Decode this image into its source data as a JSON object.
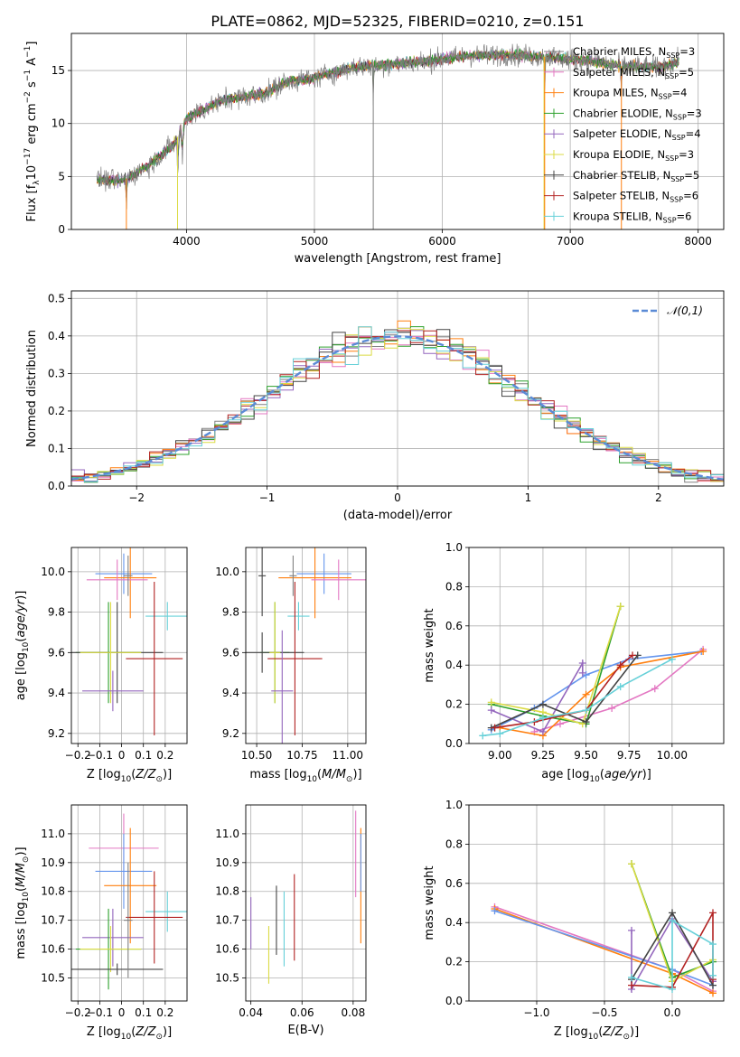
{
  "title": "PLATE=0862, MJD=52325, FIBERID=0210, z=0.151",
  "colors": [
    "#808080",
    "#e377c2",
    "#ff7f0e",
    "#2ca02c",
    "#9467bd",
    "#dbdb44",
    "#444444",
    "#b22222",
    "#66d0d8",
    "#6495ed"
  ],
  "legend": [
    {
      "label": "Chabrier MILES, N",
      "sub": "SSP",
      "suffix": "=3",
      "color": "#808080"
    },
    {
      "label": "Salpeter MILES, N",
      "sub": "SSP",
      "suffix": "=5",
      "color": "#e377c2"
    },
    {
      "label": "Kroupa MILES, N",
      "sub": "SSP",
      "suffix": "=4",
      "color": "#ff7f0e"
    },
    {
      "label": "Chabrier ELODIE, N",
      "sub": "SSP",
      "suffix": "=3",
      "color": "#2ca02c"
    },
    {
      "label": "Salpeter ELODIE, N",
      "sub": "SSP",
      "suffix": "=4",
      "color": "#9467bd"
    },
    {
      "label": "Kroupa ELODIE, N",
      "sub": "SSP",
      "suffix": "=3",
      "color": "#dbdb44"
    },
    {
      "label": "Chabrier STELIB, N",
      "sub": "SSP",
      "suffix": "=5",
      "color": "#444444"
    },
    {
      "label": "Salpeter STELIB, N",
      "sub": "SSP",
      "suffix": "=6",
      "color": "#b22222"
    },
    {
      "label": "Kroupa STELIB, N",
      "sub": "SSP",
      "suffix": "=6",
      "color": "#66d0d8"
    }
  ],
  "chart_data": [
    {
      "type": "line",
      "panel": "spectrum",
      "xlabel": "wavelength [Angstrom, rest frame]",
      "ylabel": "Flux [f_λ10^-17 erg cm^-2 s^-1 A^-1]",
      "xlim": [
        3100,
        8200
      ],
      "ylim": [
        0,
        18.5
      ],
      "xticks": [
        4000,
        5000,
        6000,
        7000,
        8000
      ],
      "yticks": [
        0,
        5,
        10,
        15
      ],
      "continuum": [
        [
          3300,
          4.7
        ],
        [
          3500,
          4.6
        ],
        [
          3700,
          6.0
        ],
        [
          3900,
          8.0
        ],
        [
          4000,
          10.5
        ],
        [
          4300,
          12.3
        ],
        [
          4600,
          12.8
        ],
        [
          4800,
          14.0
        ],
        [
          5000,
          14.3
        ],
        [
          5300,
          15.3
        ],
        [
          5600,
          15.6
        ],
        [
          5900,
          15.9
        ],
        [
          6200,
          16.4
        ],
        [
          6500,
          16.5
        ],
        [
          6800,
          16.3
        ],
        [
          7100,
          16.0
        ],
        [
          7400,
          15.4
        ],
        [
          7700,
          15.3
        ],
        [
          7850,
          15.8
        ]
      ],
      "absorption_lines": [
        3530,
        3933,
        3968,
        5460,
        6800,
        7400
      ]
    },
    {
      "type": "histogram",
      "panel": "residuals",
      "xlabel": "(data-model)/error",
      "ylabel": "Normed distribution",
      "xlim": [
        -2.5,
        2.5
      ],
      "ylim": [
        0,
        0.52
      ],
      "xticks": [
        -2,
        -1,
        0,
        1,
        2
      ],
      "yticks": [
        0,
        0.1,
        0.2,
        0.3,
        0.4,
        0.5
      ],
      "reference": {
        "label": "𝒩(0,1)",
        "mean": 0,
        "sigma": 1,
        "color": "#5b8bd6"
      },
      "bin_width": 0.1
    },
    {
      "type": "errorbar",
      "panel": "age_vs_Z",
      "xlabel": "Z [log10(Z/Z⊙)]",
      "ylabel": "age [log10(age/yr)]",
      "xlim": [
        -0.23,
        0.3
      ],
      "ylim": [
        9.15,
        10.12
      ],
      "xticks": [
        -0.2,
        -0.1,
        0.0,
        0.1,
        0.2
      ],
      "yticks": [
        9.2,
        9.4,
        9.6,
        9.8,
        10.0
      ],
      "points": [
        {
          "c": "#6495ed",
          "x": 0.01,
          "xe": 0.13,
          "y": 9.99,
          "ye": 0.1
        },
        {
          "c": "#ff7f0e",
          "x": 0.04,
          "xe": 0.12,
          "y": 9.97,
          "ye": 0.2
        },
        {
          "c": "#e377c2",
          "x": -0.02,
          "xe": 0.14,
          "y": 9.96,
          "ye": 0.1
        },
        {
          "c": "#808080",
          "x": 0.03,
          "xe": 0.02,
          "y": 9.98,
          "ye": 0.1
        },
        {
          "c": "#66d0d8",
          "x": 0.21,
          "xe": 0.1,
          "y": 9.78,
          "ye": 0.07
        },
        {
          "c": "#2ca02c",
          "x": -0.06,
          "xe": 0.15,
          "y": 9.6,
          "ye": 0.25
        },
        {
          "c": "#444444",
          "x": -0.02,
          "xe": 0.21,
          "y": 9.6,
          "ye": 0.25
        },
        {
          "c": "#dbdb44",
          "x": -0.05,
          "xe": 0.14,
          "y": 9.6,
          "ye": 0.25
        },
        {
          "c": "#b22222",
          "x": 0.15,
          "xe": 0.13,
          "y": 9.57,
          "ye": 0.38
        },
        {
          "c": "#9467bd",
          "x": -0.04,
          "xe": 0.14,
          "y": 9.41,
          "ye": 0.1
        }
      ]
    },
    {
      "type": "errorbar",
      "panel": "age_vs_mass",
      "xlabel": "mass [log10(M/M⊙)]",
      "xlim": [
        10.44,
        11.1
      ],
      "ylim": [
        9.15,
        10.12
      ],
      "xticks": [
        10.5,
        10.75,
        11.0
      ],
      "xticklabels": [
        "10.50",
        "10.75",
        "11.00"
      ],
      "yticks": [
        9.2,
        9.4,
        9.6,
        9.8,
        10.0
      ],
      "points": [
        {
          "c": "#6495ed",
          "x": 10.87,
          "xe": 0.15,
          "y": 9.99,
          "ye": 0.1
        },
        {
          "c": "#ff7f0e",
          "x": 10.82,
          "xe": 0.2,
          "y": 9.97,
          "ye": 0.2
        },
        {
          "c": "#e377c2",
          "x": 10.95,
          "xe": 0.15,
          "y": 9.96,
          "ye": 0.1
        },
        {
          "c": "#808080",
          "x": 10.7,
          "xe": 0.02,
          "y": 9.98,
          "ye": 0.1
        },
        {
          "c": "#444444",
          "x": 10.53,
          "xe": 0.02,
          "y": 9.98,
          "ye": 0.2
        },
        {
          "c": "#66d0d8",
          "x": 10.73,
          "xe": 0.06,
          "y": 9.78,
          "ye": 0.07
        },
        {
          "c": "#2ca02c",
          "x": 10.6,
          "xe": 0.08,
          "y": 9.6,
          "ye": 0.25
        },
        {
          "c": "#444444",
          "x": 10.53,
          "xe": 0.23,
          "y": 9.6,
          "ye": 0.1
        },
        {
          "c": "#dbdb44",
          "x": 10.6,
          "xe": 0.03,
          "y": 9.6,
          "ye": 0.25
        },
        {
          "c": "#b22222",
          "x": 10.71,
          "xe": 0.15,
          "y": 9.57,
          "ye": 0.38
        },
        {
          "c": "#9467bd",
          "x": 10.64,
          "xe": 0.06,
          "y": 9.41,
          "ye": 0.3
        }
      ]
    },
    {
      "type": "line",
      "panel": "massweight_vs_age",
      "xlabel": "age [log10(age/yr)]",
      "ylabel": "mass weight",
      "xlim": [
        8.82,
        10.3
      ],
      "ylim": [
        0,
        1
      ],
      "xticks": [
        9.0,
        9.25,
        9.5,
        9.75,
        10.0
      ],
      "xticklabels": [
        "9.00",
        "9.25",
        "9.50",
        "9.75",
        "10.00"
      ],
      "yticks": [
        0,
        0.2,
        0.4,
        0.6,
        0.8,
        1.0
      ],
      "series": [
        {
          "c": "#6495ed",
          "pts": [
            [
              8.95,
              0.07
            ],
            [
              9.2,
              0.18
            ],
            [
              9.5,
              0.35
            ],
            [
              9.75,
              0.43
            ],
            [
              10.17,
              0.47
            ]
          ]
        },
        {
          "c": "#e377c2",
          "pts": [
            [
              9.2,
              0.06
            ],
            [
              9.35,
              0.1
            ],
            [
              9.65,
              0.18
            ],
            [
              9.9,
              0.28
            ],
            [
              10.18,
              0.48
            ]
          ]
        },
        {
          "c": "#ff7f0e",
          "pts": [
            [
              9.0,
              0.08
            ],
            [
              9.25,
              0.04
            ],
            [
              9.5,
              0.25
            ],
            [
              9.7,
              0.39
            ],
            [
              10.18,
              0.47
            ]
          ]
        },
        {
          "c": "#2ca02c",
          "pts": [
            [
              8.95,
              0.2
            ],
            [
              9.25,
              0.14
            ],
            [
              9.5,
              0.1
            ],
            [
              9.7,
              0.7
            ]
          ]
        },
        {
          "c": "#9467bd",
          "pts": [
            [
              8.95,
              0.17
            ],
            [
              9.25,
              0.06
            ],
            [
              9.48,
              0.41
            ],
            [
              9.48,
              0.36
            ]
          ]
        },
        {
          "c": "#dbdb44",
          "pts": [
            [
              8.95,
              0.21
            ],
            [
              9.25,
              0.16
            ],
            [
              9.48,
              0.1
            ],
            [
              9.7,
              0.7
            ]
          ]
        },
        {
          "c": "#444444",
          "pts": [
            [
              8.95,
              0.08
            ],
            [
              9.25,
              0.2
            ],
            [
              9.5,
              0.11
            ],
            [
              9.8,
              0.45
            ]
          ]
        },
        {
          "c": "#b22222",
          "pts": [
            [
              8.97,
              0.08
            ],
            [
              9.2,
              0.11
            ],
            [
              9.5,
              0.17
            ],
            [
              9.7,
              0.4
            ],
            [
              9.77,
              0.45
            ]
          ]
        },
        {
          "c": "#66d0d8",
          "pts": [
            [
              8.9,
              0.04
            ],
            [
              9.0,
              0.05
            ],
            [
              9.25,
              0.13
            ],
            [
              9.5,
              0.17
            ],
            [
              9.7,
              0.29
            ],
            [
              10.0,
              0.43
            ]
          ]
        }
      ]
    },
    {
      "type": "errorbar",
      "panel": "mass_vs_Z",
      "xlabel": "Z [log10(Z/Z⊙)]",
      "ylabel": "mass [log10(M/M⊙)]",
      "xlim": [
        -0.23,
        0.3
      ],
      "ylim": [
        10.42,
        11.1
      ],
      "xticks": [
        -0.2,
        -0.1,
        0.0,
        0.1,
        0.2
      ],
      "yticks": [
        10.5,
        10.6,
        10.7,
        10.8,
        10.9,
        11.0
      ],
      "points": [
        {
          "c": "#e377c2",
          "x": 0.01,
          "xe": 0.16,
          "y": 10.95,
          "ye": 0.12
        },
        {
          "c": "#6495ed",
          "x": 0.01,
          "xe": 0.13,
          "y": 10.87,
          "ye": 0.13
        },
        {
          "c": "#ff7f0e",
          "x": 0.04,
          "xe": 0.12,
          "y": 10.82,
          "ye": 0.2
        },
        {
          "c": "#66d0d8",
          "x": 0.21,
          "xe": 0.1,
          "y": 10.73,
          "ye": 0.07
        },
        {
          "c": "#b22222",
          "x": 0.15,
          "xe": 0.13,
          "y": 10.71,
          "ye": 0.16
        },
        {
          "c": "#9467bd",
          "x": -0.04,
          "xe": 0.14,
          "y": 10.64,
          "ye": 0.1
        },
        {
          "c": "#2ca02c",
          "x": -0.06,
          "xe": 0.15,
          "y": 10.6,
          "ye": 0.14
        },
        {
          "c": "#dbdb44",
          "x": -0.05,
          "xe": 0.14,
          "y": 10.6,
          "ye": 0.08
        },
        {
          "c": "#444444",
          "x": -0.02,
          "xe": 0.21,
          "y": 10.53,
          "ye": 0.02
        },
        {
          "c": "#808080",
          "x": 0.03,
          "xe": 0.02,
          "y": 10.7,
          "ye": 0.2
        }
      ]
    },
    {
      "type": "errorbar",
      "panel": "mass_vs_EBV",
      "xlabel": "E(B-V)",
      "xlim": [
        0.038,
        0.085
      ],
      "ylim": [
        10.42,
        11.1
      ],
      "xticks": [
        0.04,
        0.06,
        0.08
      ],
      "xticklabels": [
        "0.04",
        "0.06",
        "0.08"
      ],
      "yticks": [
        10.5,
        10.6,
        10.7,
        10.8,
        10.9,
        11.0
      ],
      "points": [
        {
          "c": "#9467bd",
          "x": 0.04,
          "y": 10.69,
          "ye": 0.09
        },
        {
          "c": "#dbdb44",
          "x": 0.047,
          "y": 10.58,
          "ye": 0.1
        },
        {
          "c": "#444444",
          "x": 0.05,
          "y": 10.7,
          "ye": 0.12
        },
        {
          "c": "#66d0d8",
          "x": 0.053,
          "y": 10.67,
          "ye": 0.13
        },
        {
          "c": "#b22222",
          "x": 0.057,
          "y": 10.71,
          "ye": 0.15
        },
        {
          "c": "#e377c2",
          "x": 0.081,
          "y": 10.93,
          "ye": 0.15
        },
        {
          "c": "#ff7f0e",
          "x": 0.083,
          "y": 10.82,
          "ye": 0.2
        },
        {
          "c": "#6495ed",
          "x": 0.083,
          "y": 10.9,
          "ye": 0.1
        }
      ]
    },
    {
      "type": "line",
      "panel": "massweight_vs_Z",
      "xlabel": "Z [log10(Z/Z⊙)]",
      "ylabel": "mass weight",
      "xlim": [
        -1.5,
        0.38
      ],
      "ylim": [
        0,
        1
      ],
      "xticks": [
        -1.0,
        -0.5,
        0.0
      ],
      "xticklabels": [
        "−1.0",
        "−0.5",
        "0.0"
      ],
      "yticks": [
        0,
        0.2,
        0.4,
        0.6,
        0.8,
        1.0
      ],
      "series": [
        {
          "c": "#e377c2",
          "pts": [
            [
              -1.31,
              0.48
            ],
            [
              0.0,
              0.16
            ],
            [
              0.3,
              0.05
            ]
          ]
        },
        {
          "c": "#ff7f0e",
          "pts": [
            [
              -1.31,
              0.47
            ],
            [
              0.0,
              0.14
            ],
            [
              0.3,
              0.04
            ]
          ]
        },
        {
          "c": "#6495ed",
          "pts": [
            [
              -1.31,
              0.46
            ],
            [
              0.0,
              0.16
            ],
            [
              0.3,
              0.08
            ]
          ]
        },
        {
          "c": "#2ca02c",
          "pts": [
            [
              -0.3,
              0.7
            ],
            [
              0.0,
              0.12
            ],
            [
              0.3,
              0.2
            ]
          ]
        },
        {
          "c": "#dbdb44",
          "pts": [
            [
              -0.3,
              0.7
            ],
            [
              0.0,
              0.1
            ],
            [
              0.3,
              0.21
            ]
          ]
        },
        {
          "c": "#9467bd",
          "pts": [
            [
              -0.3,
              0.36
            ],
            [
              -0.3,
              0.06
            ],
            [
              0.0,
              0.42
            ],
            [
              0.3,
              0.1
            ]
          ]
        },
        {
          "c": "#444444",
          "pts": [
            [
              -0.3,
              0.11
            ],
            [
              0.0,
              0.45
            ],
            [
              0.3,
              0.08
            ]
          ]
        },
        {
          "c": "#b22222",
          "pts": [
            [
              -0.3,
              0.08
            ],
            [
              0.0,
              0.07
            ],
            [
              0.3,
              0.45
            ],
            [
              0.3,
              0.11
            ]
          ]
        },
        {
          "c": "#66d0d8",
          "pts": [
            [
              -0.3,
              0.12
            ],
            [
              0.0,
              0.06
            ],
            [
              0.0,
              0.41
            ],
            [
              0.3,
              0.29
            ],
            [
              0.3,
              0.13
            ]
          ]
        }
      ]
    }
  ]
}
